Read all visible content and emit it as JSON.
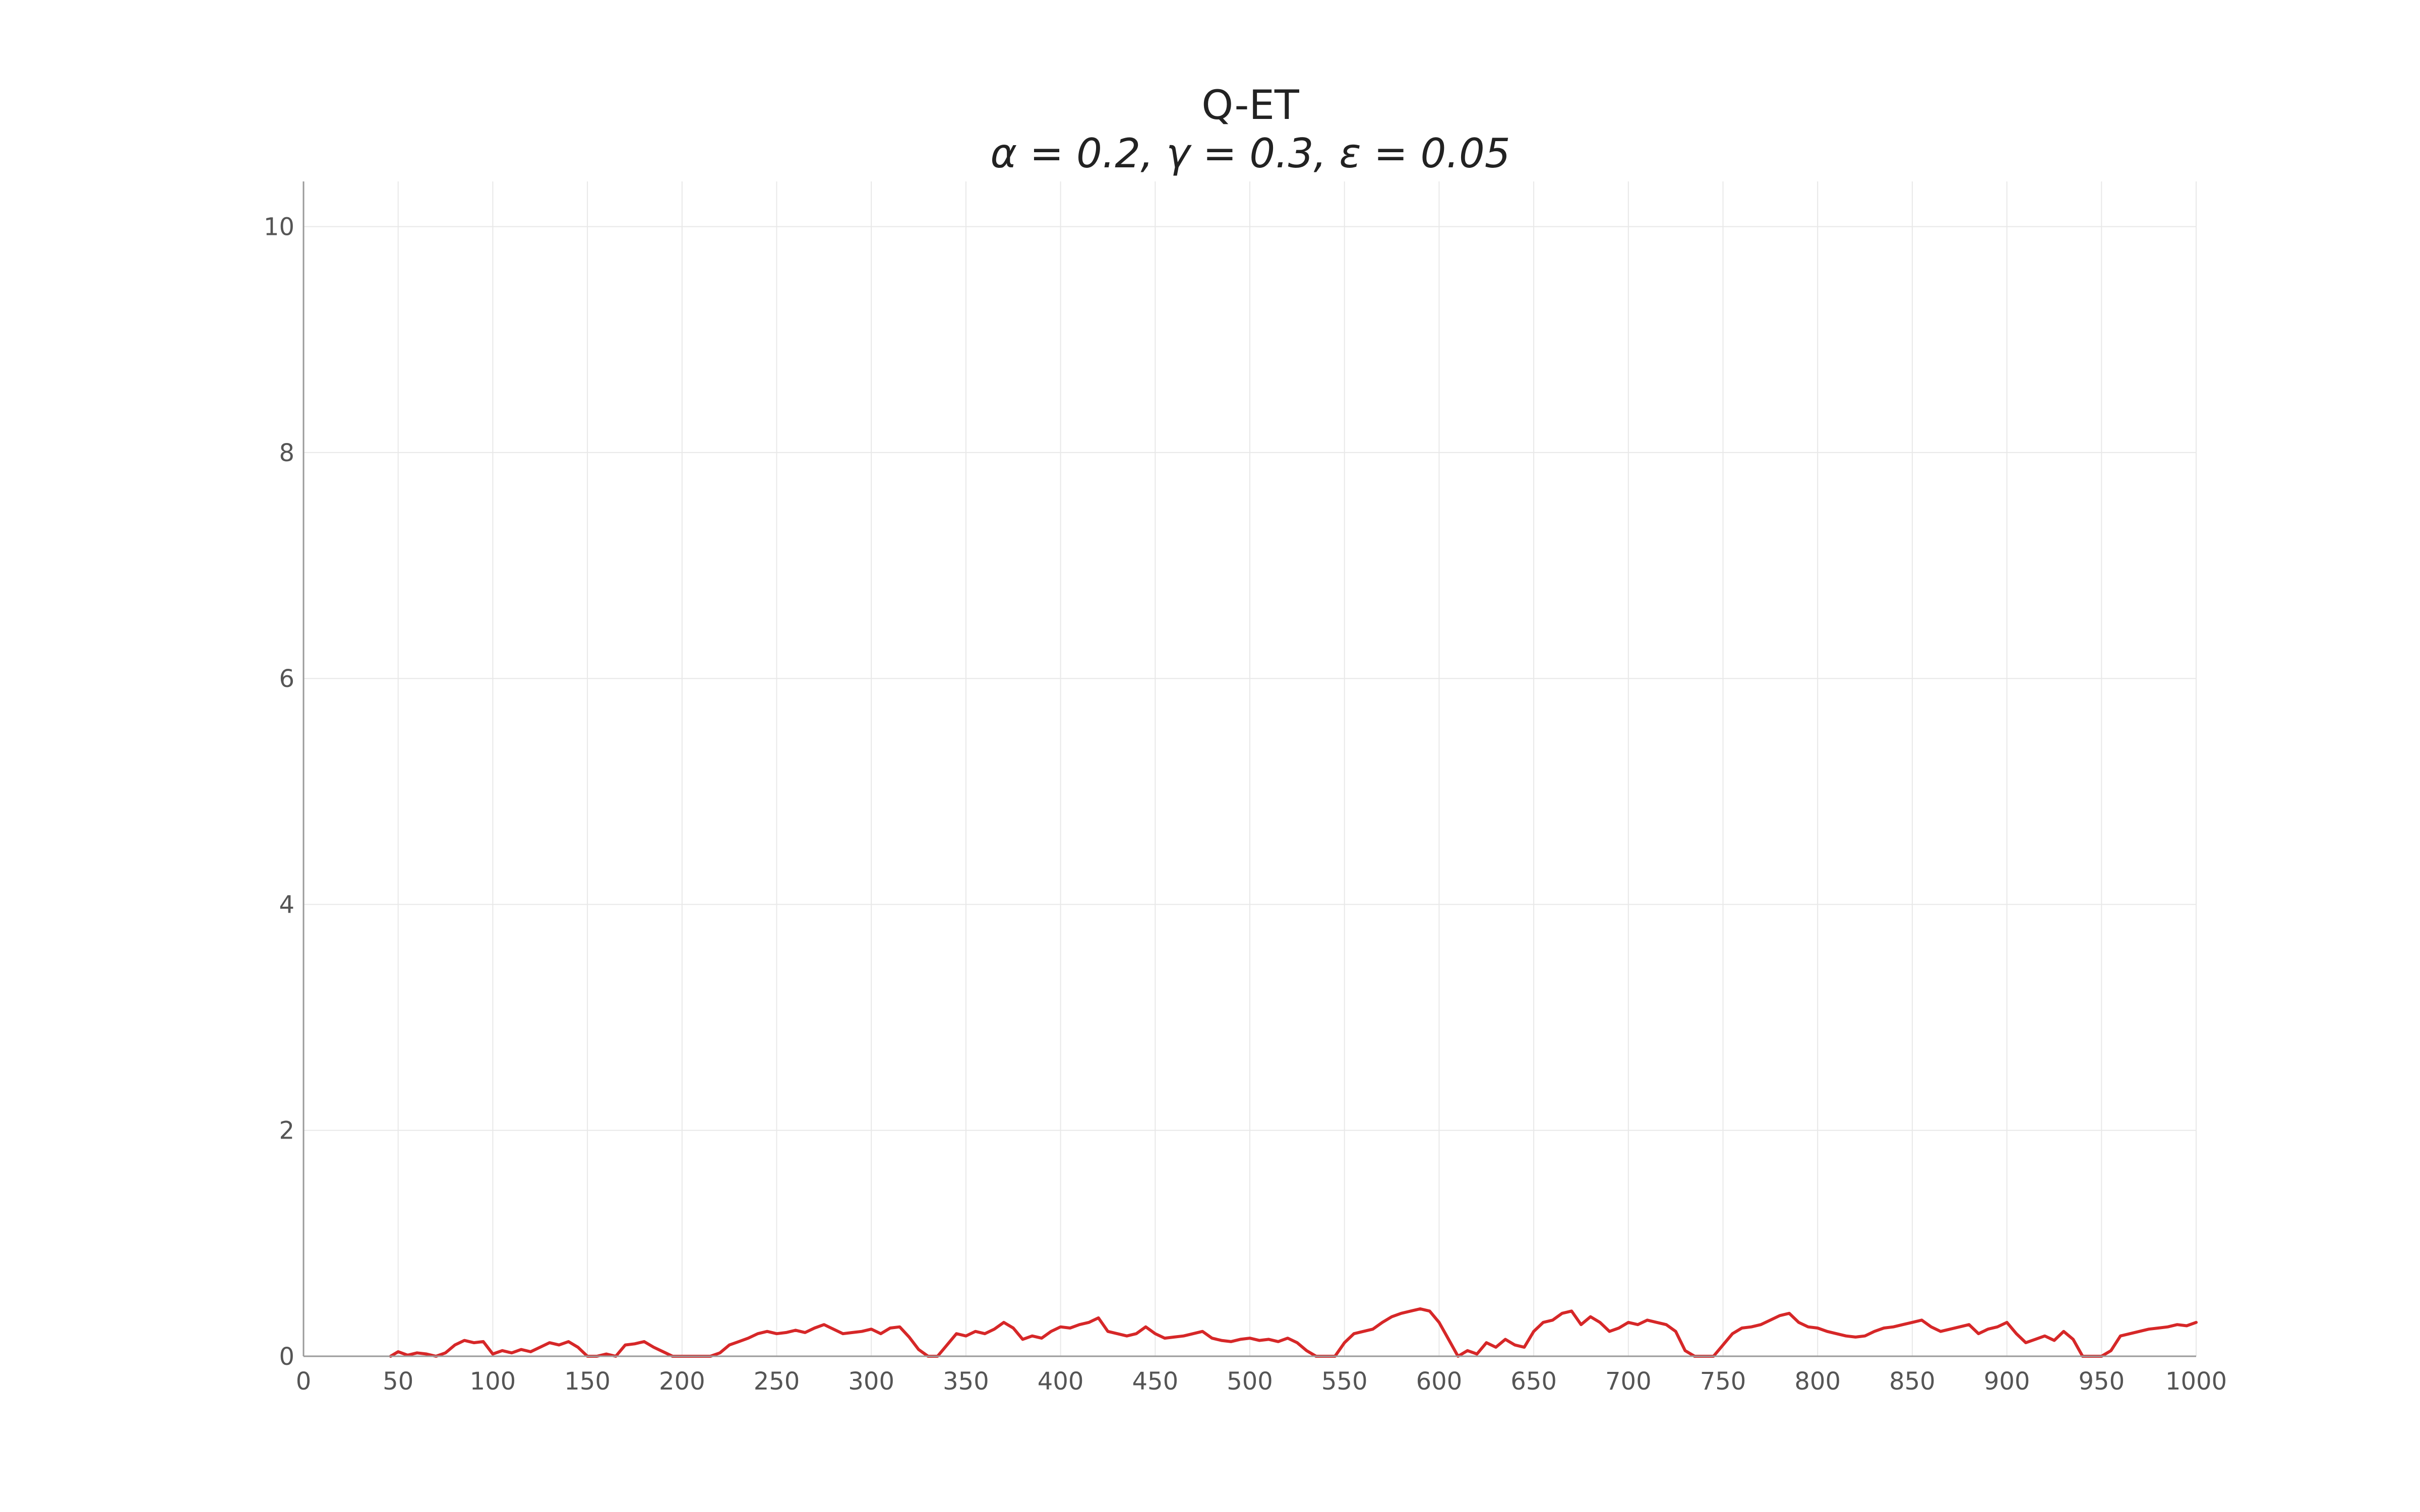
{
  "chart_data": {
    "type": "line",
    "title": "Q-ET",
    "subtitle": "α = 0.2, γ = 0.3, ε = 0.05",
    "xlabel": "",
    "ylabel": "",
    "xlim": [
      0,
      1000
    ],
    "ylim": [
      0,
      10.4
    ],
    "x_ticks": [
      0,
      50,
      100,
      150,
      200,
      250,
      300,
      350,
      400,
      450,
      500,
      550,
      600,
      650,
      700,
      750,
      800,
      850,
      900,
      950,
      1000
    ],
    "y_ticks": [
      0,
      2,
      4,
      6,
      8,
      10
    ],
    "grid": true,
    "legend": "none",
    "series": [
      {
        "color": "#d62728",
        "x": [
          46,
          50,
          55,
          60,
          65,
          70,
          75,
          80,
          85,
          90,
          95,
          100,
          105,
          110,
          115,
          120,
          125,
          130,
          135,
          140,
          145,
          150,
          155,
          160,
          165,
          170,
          175,
          180,
          185,
          190,
          195,
          200,
          205,
          210,
          215,
          220,
          225,
          230,
          235,
          240,
          245,
          250,
          255,
          260,
          265,
          270,
          275,
          280,
          285,
          290,
          295,
          300,
          305,
          310,
          315,
          320,
          325,
          330,
          335,
          340,
          345,
          350,
          355,
          360,
          365,
          370,
          375,
          380,
          385,
          390,
          395,
          400,
          405,
          410,
          415,
          420,
          425,
          430,
          435,
          440,
          445,
          450,
          455,
          460,
          465,
          470,
          475,
          480,
          485,
          490,
          495,
          500,
          505,
          510,
          515,
          520,
          525,
          530,
          535,
          540,
          545,
          550,
          555,
          560,
          565,
          570,
          575,
          580,
          585,
          590,
          595,
          600,
          605,
          610,
          615,
          620,
          625,
          630,
          635,
          640,
          645,
          650,
          655,
          660,
          665,
          670,
          675,
          680,
          685,
          690,
          695,
          700,
          705,
          710,
          715,
          720,
          725,
          730,
          735,
          740,
          745,
          750,
          755,
          760,
          765,
          770,
          775,
          780,
          785,
          790,
          795,
          800,
          805,
          810,
          815,
          820,
          825,
          830,
          835,
          840,
          845,
          850,
          855,
          860,
          865,
          870,
          875,
          880,
          885,
          890,
          895,
          900,
          905,
          910,
          915,
          920,
          925,
          930,
          935,
          940,
          945,
          950,
          955,
          960,
          965,
          970,
          975,
          980,
          985,
          990,
          995,
          1000
        ],
        "y": [
          0.0,
          0.04,
          0.01,
          0.03,
          0.02,
          0.0,
          0.03,
          0.1,
          0.14,
          0.12,
          0.13,
          0.02,
          0.05,
          0.03,
          0.06,
          0.04,
          0.08,
          0.12,
          0.1,
          0.13,
          0.08,
          0.0,
          0.0,
          0.02,
          0.0,
          0.1,
          0.11,
          0.13,
          0.08,
          0.04,
          0.0,
          0.0,
          0.0,
          0.0,
          0.0,
          0.03,
          0.1,
          0.13,
          0.16,
          0.2,
          0.22,
          0.2,
          0.21,
          0.23,
          0.21,
          0.25,
          0.28,
          0.24,
          0.2,
          0.21,
          0.22,
          0.24,
          0.2,
          0.25,
          0.26,
          0.17,
          0.06,
          0.0,
          0.0,
          0.1,
          0.2,
          0.18,
          0.22,
          0.2,
          0.24,
          0.3,
          0.25,
          0.15,
          0.18,
          0.16,
          0.22,
          0.26,
          0.25,
          0.28,
          0.3,
          0.34,
          0.22,
          0.2,
          0.18,
          0.2,
          0.26,
          0.2,
          0.16,
          0.17,
          0.18,
          0.2,
          0.22,
          0.16,
          0.14,
          0.13,
          0.15,
          0.16,
          0.14,
          0.15,
          0.13,
          0.16,
          0.12,
          0.05,
          0.0,
          0.0,
          0.0,
          0.12,
          0.2,
          0.22,
          0.24,
          0.3,
          0.35,
          0.38,
          0.4,
          0.42,
          0.4,
          0.3,
          0.15,
          0.0,
          0.05,
          0.02,
          0.12,
          0.08,
          0.15,
          0.1,
          0.08,
          0.22,
          0.3,
          0.32,
          0.38,
          0.4,
          0.28,
          0.35,
          0.3,
          0.22,
          0.25,
          0.3,
          0.28,
          0.32,
          0.3,
          0.28,
          0.22,
          0.05,
          0.0,
          0.0,
          0.0,
          0.1,
          0.2,
          0.25,
          0.26,
          0.28,
          0.32,
          0.36,
          0.38,
          0.3,
          0.26,
          0.25,
          0.22,
          0.2,
          0.18,
          0.17,
          0.18,
          0.22,
          0.25,
          0.26,
          0.28,
          0.3,
          0.32,
          0.26,
          0.22,
          0.24,
          0.26,
          0.28,
          0.2,
          0.24,
          0.26,
          0.3,
          0.2,
          0.12,
          0.15,
          0.18,
          0.14,
          0.22,
          0.15,
          0.0,
          0.0,
          0.0,
          0.05,
          0.18,
          0.2,
          0.22,
          0.24,
          0.25,
          0.26,
          0.28,
          0.27,
          0.3
        ]
      }
    ]
  }
}
